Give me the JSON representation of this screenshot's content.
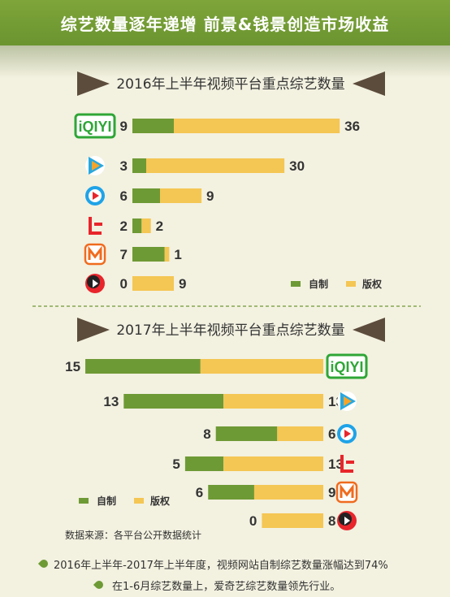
{
  "header": {
    "title": "综艺数量逐年递增  前景&钱景创造市场收益"
  },
  "colors": {
    "self_made": "#6e9a35",
    "licensed": "#f4c653",
    "banner": "#7ea53a",
    "arrow": "#5c4c3c"
  },
  "chart_data": [
    {
      "type": "bar",
      "stacked": true,
      "orientation": "horizontal",
      "title": "2016年上半年视频平台重点综艺数量",
      "categories": [
        "iqiyi",
        "tencent-video",
        "youku",
        "letv",
        "mango-tv",
        "sohu-video"
      ],
      "series": [
        {
          "name": "自制",
          "values": [
            9,
            3,
            6,
            2,
            7,
            0
          ]
        },
        {
          "name": "版权",
          "values": [
            36,
            30,
            9,
            2,
            1,
            9
          ]
        }
      ],
      "legend": "bottom-right"
    },
    {
      "type": "bar",
      "stacked": true,
      "orientation": "horizontal",
      "title": "2017年上半年视频平台重点综艺数量",
      "categories": [
        "iqiyi",
        "tencent-video",
        "youku",
        "letv",
        "mango-tv",
        "sohu-video"
      ],
      "series": [
        {
          "name": "自制",
          "values": [
            15,
            13,
            8,
            5,
            6,
            0
          ]
        },
        {
          "name": "版权",
          "values": [
            16,
            13,
            6,
            13,
            9,
            8
          ]
        }
      ],
      "legend": "bottom-left"
    }
  ],
  "footer": {
    "source": "数据来源：各平台公开数据统计",
    "note1": "2016年上半年-2017年上半年度，视频网站自制综艺数量涨幅达到74%",
    "note2": "在1-6月综艺数量上，爱奇艺综艺数量领先行业。"
  },
  "logos": {
    "iqiyi_text": "iQIYI"
  }
}
